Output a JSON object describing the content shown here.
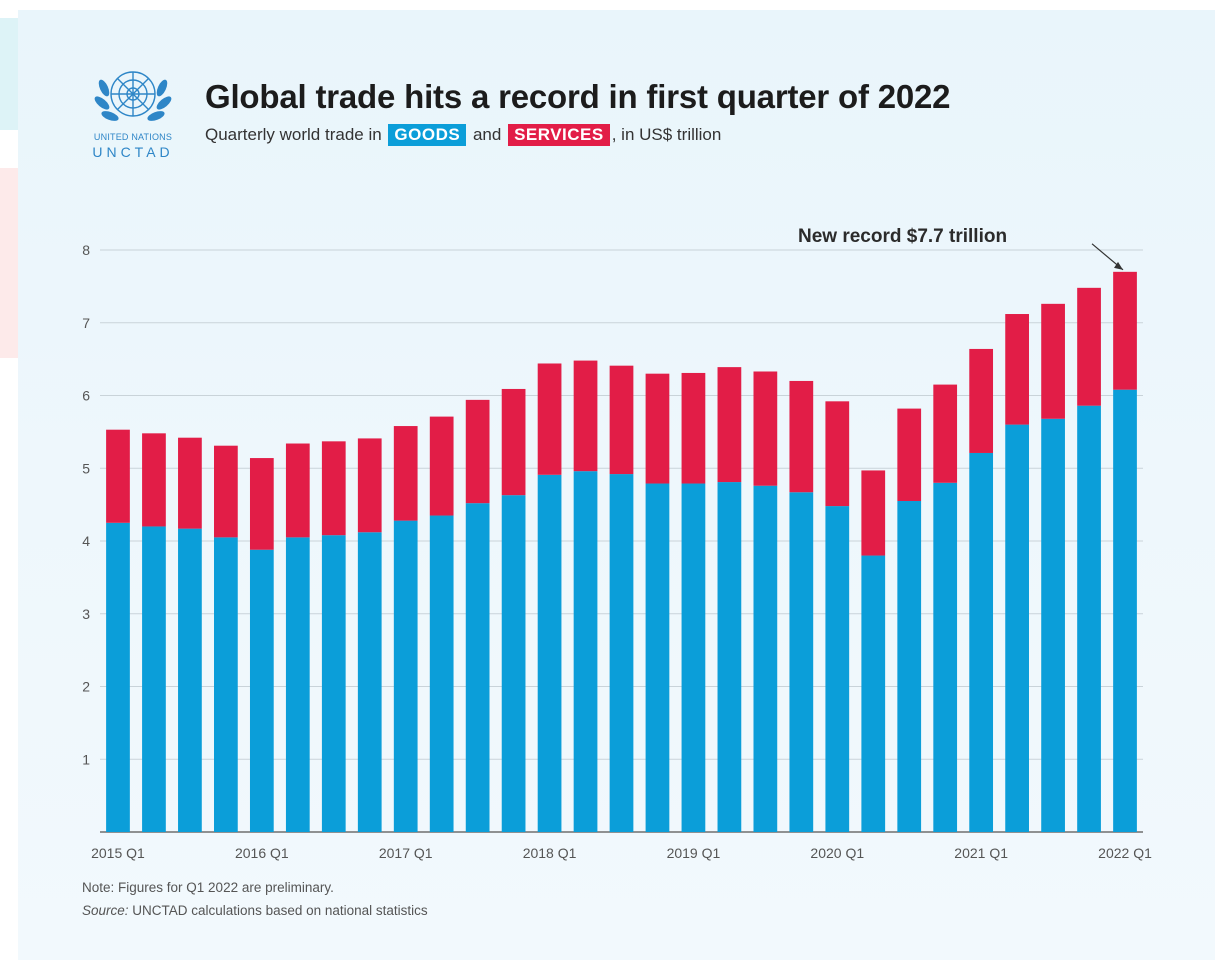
{
  "logo": {
    "org_line": "UNITED NATIONS",
    "acronym": "UNCTAD",
    "icon": "un-emblem-icon",
    "color": "#2e86c7"
  },
  "header": {
    "title": "Global trade hits a record in first quarter of 2022",
    "subtitle_before": "Quarterly world trade in",
    "subtitle_goods": "GOODS",
    "subtitle_and": "and",
    "subtitle_services": "SERVICES",
    "subtitle_after": ", in US$ trillion"
  },
  "annotation": {
    "text": "New record $7.7 trillion",
    "target_category": "2022 Q1"
  },
  "footer": {
    "note": "Note: Figures for Q1 2022 are preliminary.",
    "source_prefix": "Source:",
    "source_text": " UNCTAD calculations based on national statistics"
  },
  "chart_data": {
    "type": "bar",
    "stacked": true,
    "categories": [
      "2015 Q1",
      "2015 Q2",
      "2015 Q3",
      "2015 Q4",
      "2016 Q1",
      "2016 Q2",
      "2016 Q3",
      "2016 Q4",
      "2017 Q1",
      "2017 Q2",
      "2017 Q3",
      "2017 Q4",
      "2018 Q1",
      "2018 Q2",
      "2018 Q3",
      "2018 Q4",
      "2019 Q1",
      "2019 Q2",
      "2019 Q3",
      "2019 Q4",
      "2020 Q1",
      "2020 Q2",
      "2020 Q3",
      "2020 Q4",
      "2021 Q1",
      "2021 Q2",
      "2021 Q3",
      "2021 Q4",
      "2022 Q1"
    ],
    "x_tick_labels": [
      "2015 Q1",
      "2016 Q1",
      "2017 Q1",
      "2018 Q1",
      "2019 Q1",
      "2020 Q1",
      "2021 Q1",
      "2022 Q1"
    ],
    "series": [
      {
        "name": "GOODS",
        "color": "#0b9ed9",
        "values": [
          4.25,
          4.2,
          4.17,
          4.05,
          3.88,
          4.05,
          4.08,
          4.12,
          4.28,
          4.35,
          4.52,
          4.63,
          4.91,
          4.96,
          4.92,
          4.79,
          4.79,
          4.81,
          4.76,
          4.67,
          4.48,
          3.8,
          4.55,
          4.8,
          5.21,
          5.6,
          5.68,
          5.86,
          6.08
        ]
      },
      {
        "name": "SERVICES",
        "color": "#e21d47",
        "values": [
          1.28,
          1.28,
          1.25,
          1.26,
          1.26,
          1.29,
          1.29,
          1.29,
          1.3,
          1.36,
          1.42,
          1.46,
          1.53,
          1.52,
          1.49,
          1.51,
          1.52,
          1.58,
          1.57,
          1.53,
          1.44,
          1.17,
          1.27,
          1.35,
          1.43,
          1.52,
          1.58,
          1.62,
          1.62
        ]
      }
    ],
    "ylim": [
      0,
      8
    ],
    "y_ticks": [
      1,
      2,
      3,
      4,
      5,
      6,
      7,
      8
    ],
    "grid": true,
    "legend": "inline-in-subtitle"
  }
}
